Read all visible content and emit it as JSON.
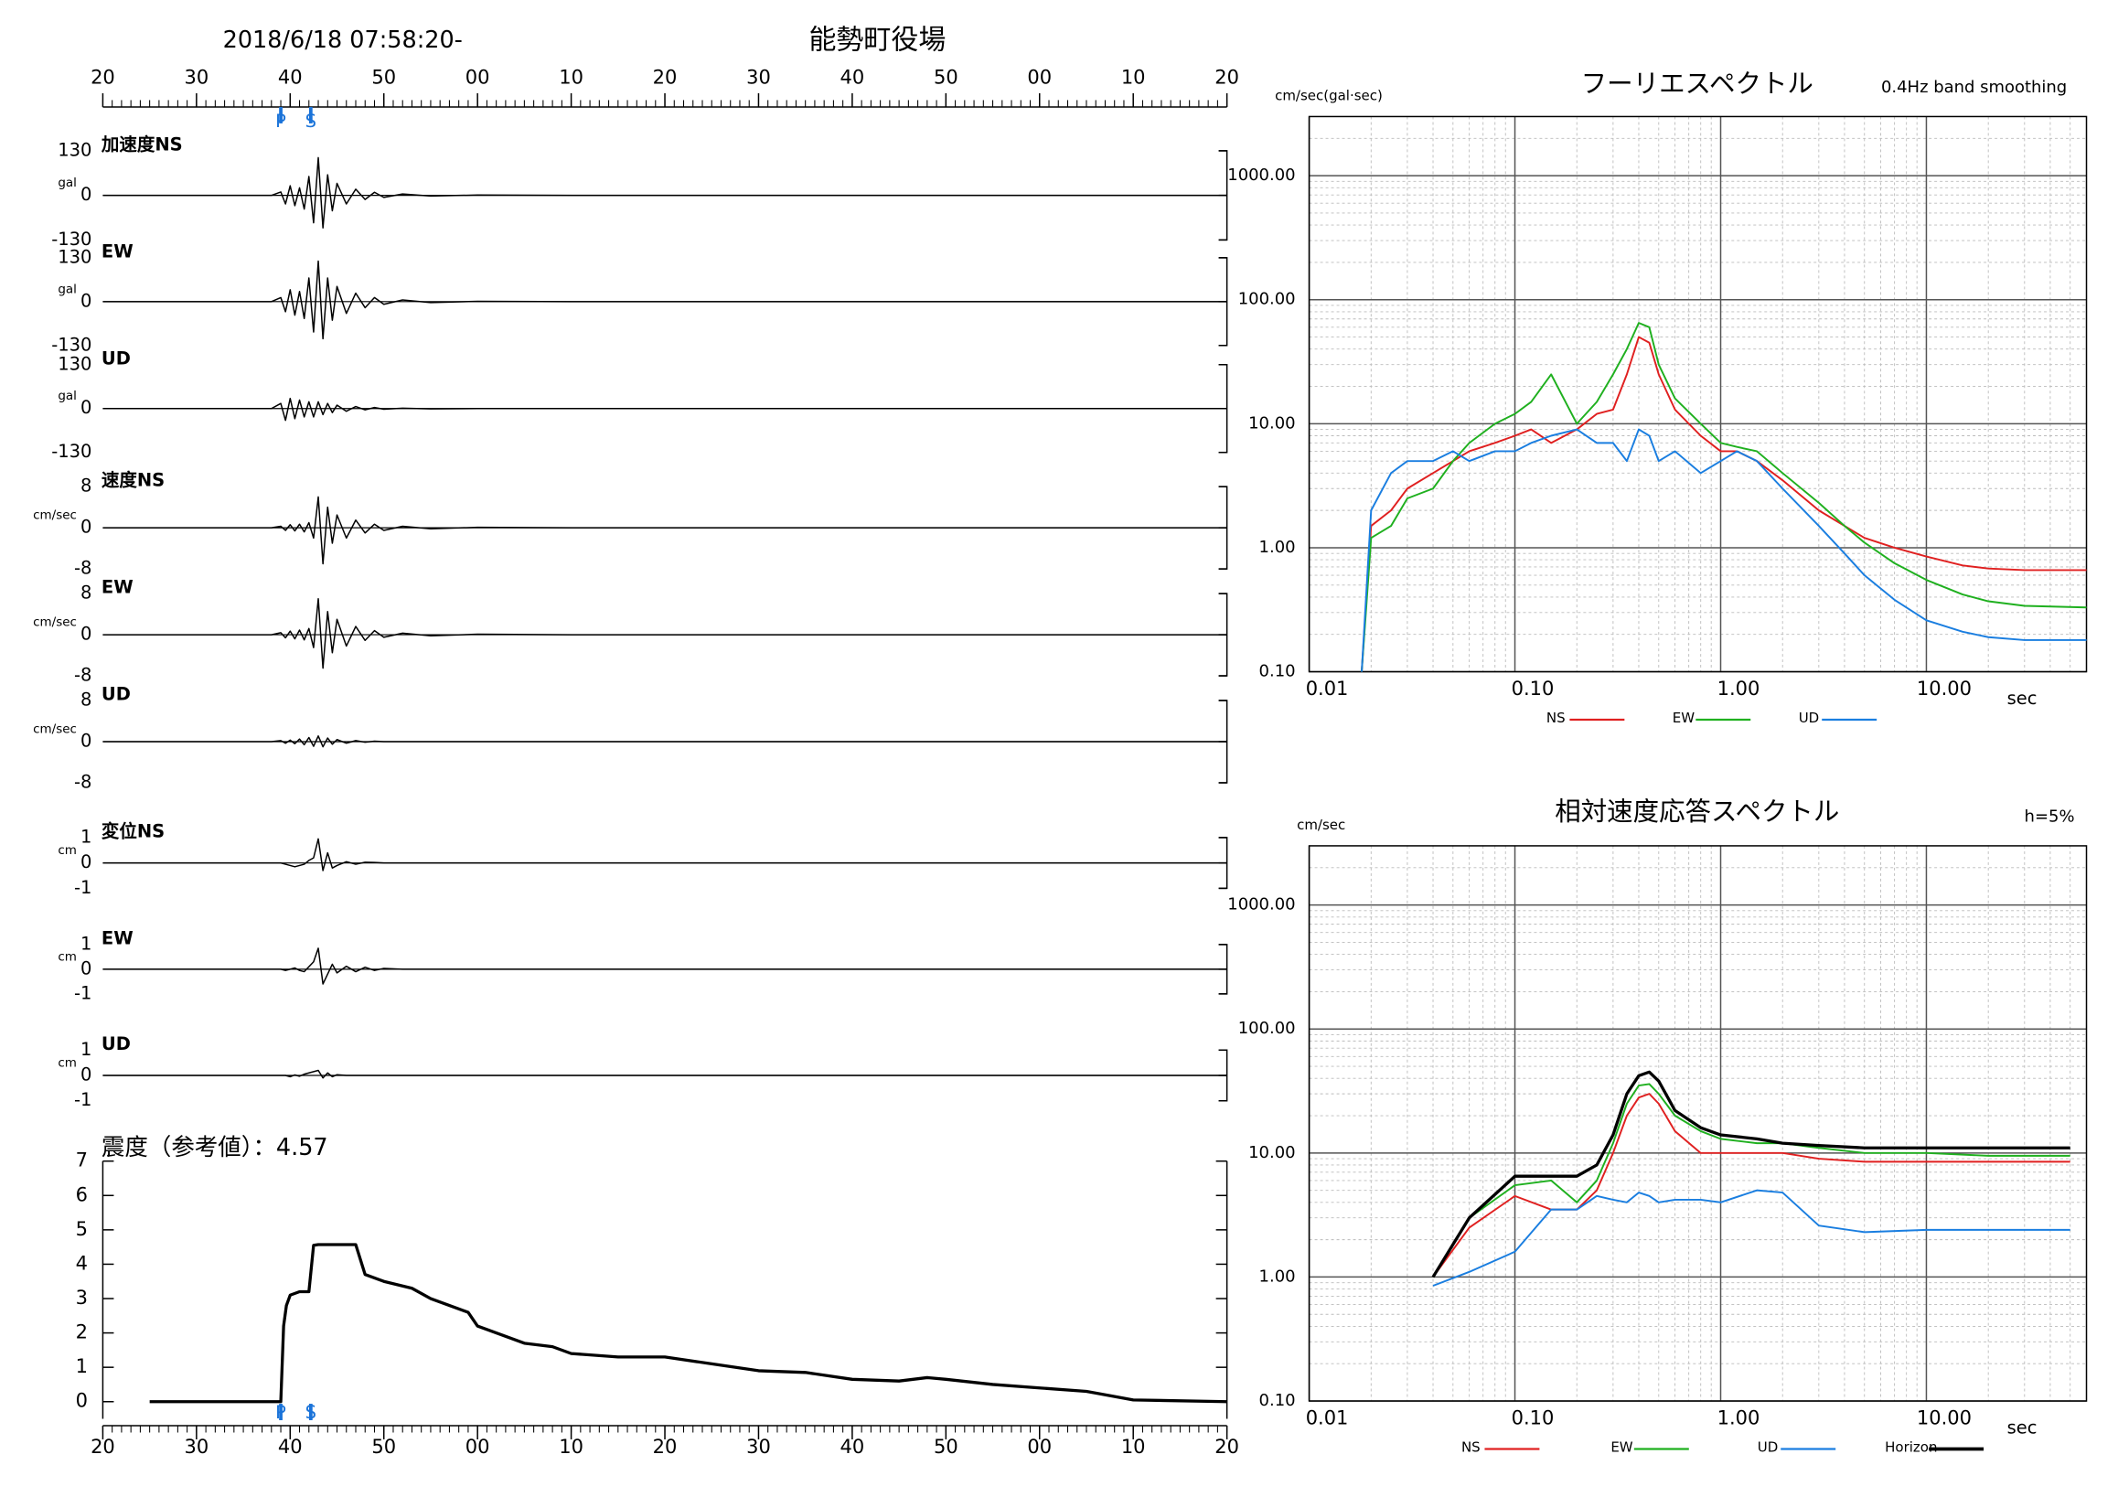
{
  "chart_data": [
    {
      "type": "waveform",
      "title": "能勢町役場",
      "subtitle": "2018/6/18 07:58:20-",
      "xlim": [
        20,
        140
      ],
      "xticks": [
        20,
        30,
        40,
        50,
        {
          "value": 60,
          "label": "00"
        },
        {
          "value": 70,
          "label": "10"
        },
        {
          "value": 80,
          "label": "20"
        },
        {
          "value": 90,
          "label": "30"
        },
        {
          "value": 100,
          "label": "40"
        },
        {
          "value": 110,
          "label": "50"
        },
        {
          "value": 120,
          "label": "00"
        },
        {
          "value": 130,
          "label": "10"
        },
        {
          "value": 140,
          "label": "20"
        }
      ],
      "phases": [
        {
          "label": "P",
          "x": 39
        },
        {
          "label": "S",
          "x": 42.2
        }
      ],
      "phase_color": "#1a73d9",
      "x": [
        20,
        30,
        38,
        39,
        39.5,
        40,
        40.5,
        41,
        41.5,
        42,
        42.5,
        43,
        43.5,
        44,
        44.5,
        45,
        46,
        47,
        48,
        49,
        50,
        52,
        55,
        60,
        70,
        80,
        90,
        100,
        110,
        120,
        130,
        140
      ],
      "panels": [
        {
          "label": "加速度NS",
          "unit": "gal",
          "ylim": [
            -130,
            130
          ],
          "yticks": [
            130,
            0,
            -130
          ],
          "color": "#000000",
          "values": [
            0,
            0,
            0,
            10,
            -25,
            28,
            -30,
            22,
            -40,
            55,
            -80,
            110,
            -95,
            60,
            -45,
            35,
            -25,
            18,
            -12,
            9,
            -6,
            4,
            -2,
            1,
            0,
            0,
            0,
            0,
            0,
            0,
            0,
            0
          ]
        },
        {
          "label": "EW",
          "unit": "gal",
          "ylim": [
            -130,
            130
          ],
          "yticks": [
            130,
            0,
            -130
          ],
          "color": "#000000",
          "values": [
            0,
            0,
            0,
            12,
            -30,
            35,
            -40,
            30,
            -50,
            70,
            -90,
            120,
            -110,
            70,
            -55,
            45,
            -35,
            25,
            -18,
            12,
            -8,
            5,
            -3,
            1,
            0,
            0,
            0,
            0,
            0,
            0,
            0,
            0
          ]
        },
        {
          "label": "UD",
          "unit": "gal",
          "ylim": [
            -130,
            130
          ],
          "yticks": [
            130,
            0,
            -130
          ],
          "color": "#000000",
          "values": [
            0,
            0,
            0,
            15,
            -35,
            30,
            -30,
            25,
            -25,
            20,
            -25,
            20,
            -18,
            15,
            -12,
            10,
            -8,
            6,
            -4,
            3,
            -2,
            1,
            -1,
            0,
            0,
            0,
            0,
            0,
            0,
            0,
            0,
            0
          ]
        },
        {
          "label": "速度NS",
          "unit": "cm/sec",
          "ylim": [
            -8,
            8
          ],
          "yticks": [
            8,
            0,
            -8
          ],
          "color": "#000000",
          "values": [
            0,
            0,
            0,
            0.3,
            -0.5,
            0.6,
            -0.6,
            0.7,
            -0.8,
            1,
            -2,
            6,
            -7,
            4,
            -3,
            2.5,
            -2,
            1.5,
            -1,
            0.7,
            -0.5,
            0.3,
            -0.2,
            0.1,
            0,
            0,
            0,
            0,
            0,
            0,
            0,
            0
          ]
        },
        {
          "label": "EW",
          "unit": "cm/sec",
          "ylim": [
            -8,
            8
          ],
          "yticks": [
            8,
            0,
            -8
          ],
          "color": "#000000",
          "values": [
            0,
            0,
            0,
            0.4,
            -0.6,
            0.7,
            -0.8,
            0.9,
            -1,
            1.2,
            -2.5,
            7,
            -6.5,
            4.5,
            -3.5,
            3,
            -2.2,
            1.6,
            -1.1,
            0.8,
            -0.5,
            0.3,
            -0.2,
            0.1,
            0,
            0,
            0,
            0,
            0,
            0,
            0,
            0
          ]
        },
        {
          "label": "UD",
          "unit": "cm/sec",
          "ylim": [
            -8,
            8
          ],
          "yticks": [
            8,
            0,
            -8
          ],
          "color": "#000000",
          "values": [
            0,
            0,
            0,
            0.2,
            -0.3,
            0.3,
            -0.4,
            0.5,
            -0.6,
            0.8,
            -0.9,
            1.1,
            -1,
            0.7,
            -0.5,
            0.4,
            -0.3,
            0.2,
            -0.1,
            0.1,
            0,
            0,
            0,
            0,
            0,
            0,
            0,
            0,
            0,
            0,
            0,
            0
          ]
        },
        {
          "label": "変位NS",
          "unit": "cm",
          "ylim": [
            -1,
            1
          ],
          "yticks": [
            1,
            0,
            -1
          ],
          "color": "#000000",
          "values": [
            0,
            0,
            0,
            0,
            -0.05,
            -0.1,
            -0.15,
            -0.1,
            -0.05,
            0.1,
            0.2,
            0.95,
            -0.3,
            0.4,
            -0.2,
            -0.1,
            0.05,
            -0.05,
            0.03,
            0.02,
            0,
            0,
            0,
            0,
            0,
            0,
            0,
            0,
            0,
            0,
            0,
            0
          ]
        },
        {
          "label": "EW",
          "unit": "cm",
          "ylim": [
            -1,
            1
          ],
          "yticks": [
            1,
            0,
            -1
          ],
          "color": "#000000",
          "values": [
            0,
            0,
            0,
            0,
            -0.05,
            0,
            0.05,
            -0.05,
            -0.1,
            0.1,
            0.3,
            0.85,
            -0.6,
            -0.2,
            0.2,
            -0.15,
            0.12,
            -0.1,
            0.08,
            -0.05,
            0.03,
            0,
            0,
            0,
            0,
            0,
            0,
            0,
            0,
            0,
            0,
            0
          ]
        },
        {
          "label": "UD",
          "unit": "cm",
          "ylim": [
            -1,
            1
          ],
          "yticks": [
            1,
            0,
            -1
          ],
          "color": "#000000",
          "values": [
            0,
            0,
            0,
            0,
            0,
            -0.05,
            0.02,
            -0.03,
            0.05,
            0.1,
            0.15,
            0.2,
            -0.1,
            0.1,
            -0.05,
            0.03,
            0,
            0,
            0,
            0,
            0,
            0,
            0,
            0,
            0,
            0,
            0,
            0,
            0,
            0,
            0,
            0
          ]
        }
      ]
    },
    {
      "type": "line",
      "title": "震度（参考値）：4.57",
      "xlim": [
        20,
        140
      ],
      "xticks": [
        20,
        30,
        40,
        50,
        {
          "value": 60,
          "label": "00"
        },
        {
          "value": 70,
          "label": "10"
        },
        {
          "value": 80,
          "label": "20"
        },
        {
          "value": 90,
          "label": "30"
        },
        {
          "value": 100,
          "label": "40"
        },
        {
          "value": 110,
          "label": "50"
        },
        {
          "value": 120,
          "label": "00"
        },
        {
          "value": 130,
          "label": "10"
        },
        {
          "value": 140,
          "label": "20"
        }
      ],
      "phases": [
        {
          "label": "P",
          "x": 39
        },
        {
          "label": "S",
          "x": 42.2
        }
      ],
      "phase_color": "#1a73d9",
      "ylim": [
        -0.5,
        7
      ],
      "yticks": [
        0,
        1,
        2,
        3,
        4,
        5,
        6,
        7
      ],
      "color": "#000000",
      "x": [
        25,
        39,
        39.3,
        39.6,
        40,
        41,
        42,
        42.5,
        43,
        47,
        48,
        50,
        53,
        55,
        57,
        59,
        60,
        62,
        65,
        68,
        70,
        75,
        80,
        85,
        90,
        95,
        100,
        105,
        108,
        110,
        115,
        120,
        125,
        130,
        140
      ],
      "values": [
        0,
        0,
        2.2,
        2.8,
        3.1,
        3.2,
        3.2,
        4.55,
        4.57,
        4.57,
        3.7,
        3.5,
        3.3,
        3.0,
        2.8,
        2.6,
        2.2,
        2.0,
        1.7,
        1.6,
        1.4,
        1.3,
        1.3,
        1.1,
        0.9,
        0.85,
        0.65,
        0.6,
        0.7,
        0.65,
        0.5,
        0.4,
        0.3,
        0.05,
        0
      ]
    },
    {
      "type": "loglog",
      "title": "フーリエスペクトル",
      "subtitle": "0.4Hz band smoothing",
      "y_unit": "cm/sec(gal·sec)",
      "x_unit": "sec",
      "xlim": [
        0.01,
        60
      ],
      "xticks": [
        0.01,
        {
          "value": 0.1,
          "label": "0.10"
        },
        {
          "value": 1,
          "label": "1.00"
        },
        {
          "value": 10,
          "label": "10.00"
        }
      ],
      "ylim": [
        0.1,
        3000
      ],
      "yticks": [
        {
          "value": 0.1,
          "label": "0.10"
        },
        {
          "value": 1,
          "label": "1.00"
        },
        {
          "value": 10,
          "label": "10.00"
        },
        {
          "value": 100,
          "label": "100.00"
        },
        {
          "value": 1000,
          "label": "1000.00"
        }
      ],
      "grid": true,
      "x": [
        0.018,
        0.02,
        0.025,
        0.03,
        0.04,
        0.05,
        0.06,
        0.08,
        0.1,
        0.12,
        0.15,
        0.2,
        0.25,
        0.3,
        0.35,
        0.4,
        0.45,
        0.5,
        0.6,
        0.8,
        1,
        1.2,
        1.5,
        2,
        3,
        4,
        5,
        7,
        10,
        15,
        20,
        30,
        60
      ],
      "series": [
        {
          "name": "NS",
          "color": "#e02020",
          "values": [
            0.1,
            1.5,
            2,
            3,
            4,
            5,
            6,
            7,
            8,
            9,
            7,
            9,
            12,
            13,
            25,
            50,
            45,
            25,
            13,
            8,
            6,
            6,
            5,
            3.5,
            2,
            1.5,
            1.2,
            1.0,
            0.85,
            0.72,
            0.68,
            0.66,
            0.66
          ]
        },
        {
          "name": "EW",
          "color": "#1fb01f",
          "values": [
            0.1,
            1.2,
            1.5,
            2.5,
            3,
            5,
            7,
            10,
            12,
            15,
            25,
            10,
            15,
            25,
            40,
            65,
            60,
            30,
            16,
            10,
            7,
            6.5,
            6,
            4,
            2.3,
            1.5,
            1.1,
            0.75,
            0.55,
            0.42,
            0.37,
            0.34,
            0.33
          ]
        },
        {
          "name": "UD",
          "color": "#1a7ee0",
          "values": [
            0.1,
            2,
            4,
            5,
            5,
            6,
            5,
            6,
            6,
            7,
            8,
            9,
            7,
            7,
            5,
            9,
            8,
            5,
            6,
            4,
            5,
            6,
            5,
            3,
            1.5,
            0.9,
            0.6,
            0.38,
            0.26,
            0.21,
            0.19,
            0.18,
            0.18
          ]
        }
      ]
    },
    {
      "type": "loglog",
      "title": "相対速度応答スペクトル",
      "subtitle": "h=5%",
      "y_unit": "cm/sec",
      "x_unit": "sec",
      "xlim": [
        0.01,
        60
      ],
      "xticks": [
        0.01,
        {
          "value": 0.1,
          "label": "0.10"
        },
        {
          "value": 1,
          "label": "1.00"
        },
        {
          "value": 10,
          "label": "10.00"
        }
      ],
      "ylim": [
        0.1,
        3000
      ],
      "yticks": [
        {
          "value": 0.1,
          "label": "0.10"
        },
        {
          "value": 1,
          "label": "1.00"
        },
        {
          "value": 10,
          "label": "10.00"
        },
        {
          "value": 100,
          "label": "100.00"
        },
        {
          "value": 1000,
          "label": "1000.00"
        }
      ],
      "grid": true,
      "x": [
        0.04,
        0.06,
        0.1,
        0.15,
        0.2,
        0.25,
        0.3,
        0.35,
        0.4,
        0.45,
        0.5,
        0.6,
        0.8,
        1,
        1.5,
        2,
        3,
        5,
        10,
        20,
        50
      ],
      "series": [
        {
          "name": "NS",
          "color": "#e02020",
          "values": [
            1.0,
            2.5,
            4.5,
            3.5,
            3.5,
            5,
            10,
            20,
            28,
            30,
            25,
            15,
            10,
            10,
            10,
            10,
            9,
            8.5,
            8.5,
            8.5,
            8.5
          ]
        },
        {
          "name": "EW",
          "color": "#1fb01f",
          "values": [
            1.0,
            3,
            5.5,
            6,
            4,
            6,
            12,
            25,
            35,
            36,
            30,
            20,
            15,
            13,
            12,
            12,
            11,
            10,
            10,
            9.5,
            9.5
          ]
        },
        {
          "name": "UD",
          "color": "#1a7ee0",
          "values": [
            0.85,
            1.1,
            1.6,
            3.5,
            3.5,
            4.5,
            4.2,
            4,
            4.8,
            4.5,
            4,
            4.2,
            4.2,
            4,
            5,
            4.8,
            2.6,
            2.3,
            2.4,
            2.4,
            2.4
          ]
        },
        {
          "name": "Horizon",
          "color": "#000000",
          "values": [
            1.0,
            3,
            6.5,
            6.5,
            6.5,
            8,
            14,
            30,
            42,
            45,
            38,
            22,
            16,
            14,
            13,
            12,
            11.5,
            11,
            11,
            11,
            11
          ]
        }
      ]
    }
  ]
}
